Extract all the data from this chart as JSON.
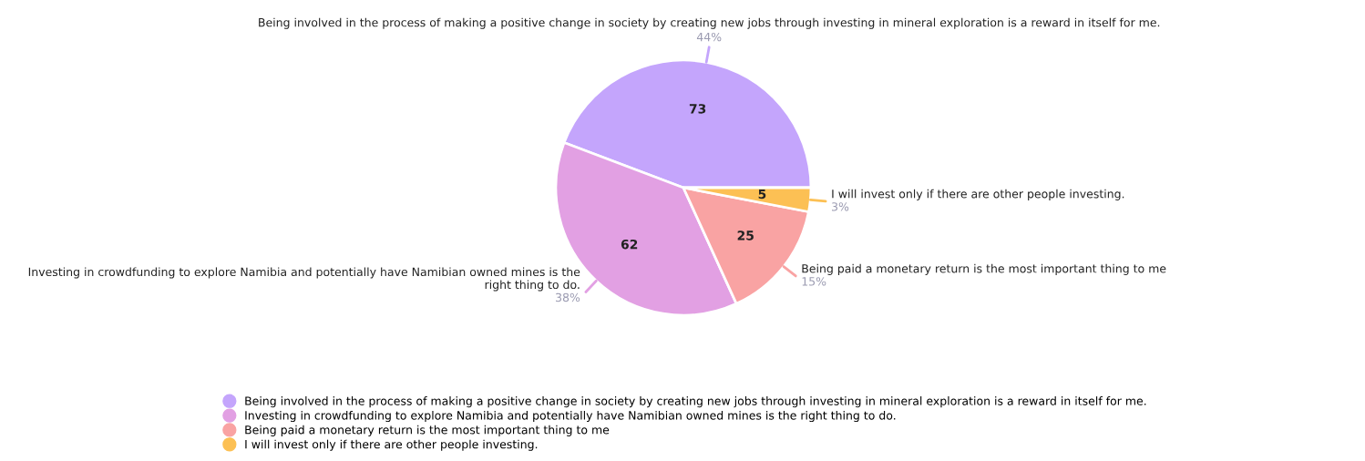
{
  "chart_data": {
    "type": "pie",
    "categories": [
      "Being involved in the process of making a positive change in society by creating new jobs through investing in mineral exploration is a reward in itself for me.",
      "Investing in crowdfunding to explore Namibia and potentially have Namibian owned mines is the right thing to do.",
      "Being paid a monetary return is the most important thing to me",
      "I will invest only if there are other people investing."
    ],
    "values": [
      73,
      62,
      25,
      5
    ],
    "colors": [
      "#c4a5fc",
      "#e2a0e3",
      "#f9a3a3",
      "#fcc054"
    ],
    "data_labels": true,
    "annotations": [
      "44%",
      "38%",
      "15%",
      "3%"
    ],
    "legend": "bottom"
  }
}
